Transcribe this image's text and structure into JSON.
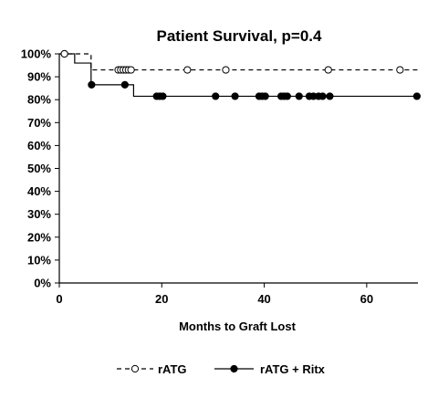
{
  "chart_data": {
    "type": "line",
    "title": "Patient Survival, p=0.4",
    "xlabel": "Months to Graft Lost",
    "ylabel": "",
    "xlim": [
      0,
      70
    ],
    "ylim": [
      0,
      100
    ],
    "x_ticks": [
      0,
      20,
      40,
      60
    ],
    "y_ticks": [
      0,
      10,
      20,
      30,
      40,
      50,
      60,
      70,
      80,
      90,
      100
    ],
    "y_tick_labels": [
      "0%",
      "10%",
      "20%",
      "30%",
      "40%",
      "50%",
      "60%",
      "70%",
      "80%",
      "90%",
      "100%"
    ],
    "grid": false,
    "legend_position": "bottom",
    "series": [
      {
        "name": "rATG",
        "line_style": "dashed",
        "marker": "open-circle",
        "color": "#000000",
        "steps": [
          [
            0,
            100
          ],
          [
            6.2,
            93
          ],
          [
            70,
            93
          ]
        ],
        "censored": [
          [
            1,
            100
          ],
          [
            11.5,
            93
          ],
          [
            12,
            93
          ],
          [
            12.5,
            93
          ],
          [
            13,
            93
          ],
          [
            13.5,
            93
          ],
          [
            14,
            93
          ],
          [
            25,
            93
          ],
          [
            32.5,
            93
          ],
          [
            52.5,
            93
          ],
          [
            66.5,
            93
          ]
        ]
      },
      {
        "name": "rATG + Ritx",
        "line_style": "solid",
        "marker": "filled-circle",
        "color": "#000000",
        "steps": [
          [
            0,
            100
          ],
          [
            3,
            96
          ],
          [
            6.2,
            86.5
          ],
          [
            13,
            86.5
          ],
          [
            14.5,
            81.5
          ],
          [
            70,
            81.5
          ]
        ],
        "censored": [
          [
            1,
            100
          ],
          [
            6.3,
            86.5
          ],
          [
            12.8,
            86.5
          ],
          [
            19,
            81.5
          ],
          [
            19.6,
            81.5
          ],
          [
            20.2,
            81.5
          ],
          [
            30.5,
            81.5
          ],
          [
            34.3,
            81.5
          ],
          [
            39,
            81.5
          ],
          [
            39.6,
            81.5
          ],
          [
            40.2,
            81.5
          ],
          [
            43.3,
            81.5
          ],
          [
            43.9,
            81.5
          ],
          [
            44.5,
            81.5
          ],
          [
            46.8,
            81.5
          ],
          [
            48.8,
            81.5
          ],
          [
            49.6,
            81.5
          ],
          [
            50.6,
            81.5
          ],
          [
            51.4,
            81.5
          ],
          [
            52.8,
            81.5
          ],
          [
            69.8,
            81.5
          ]
        ]
      }
    ]
  }
}
